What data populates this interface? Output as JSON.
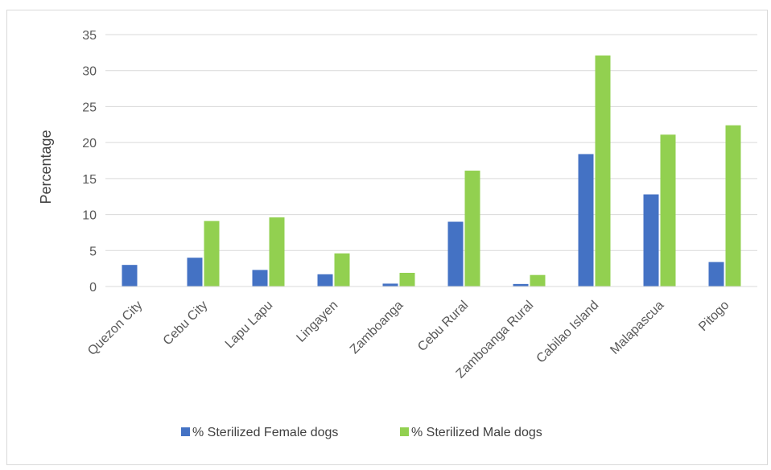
{
  "chart_data": {
    "type": "bar",
    "title": "",
    "xlabel": "",
    "ylabel": "Percentage",
    "ylim": [
      0,
      35
    ],
    "yticks": [
      0,
      5,
      10,
      15,
      20,
      25,
      30,
      35
    ],
    "grid": true,
    "legend_position": "bottom",
    "categories": [
      "Quezon City",
      "Cebu City",
      "Lapu Lapu",
      "Lingayen",
      "Zamboanga",
      "Cebu Rural",
      "Zamboanga Rural",
      "Cabilao Island",
      "Malapascua",
      "Pitogo"
    ],
    "series": [
      {
        "name": "% Sterilized Female dogs",
        "color": "#4472C4",
        "values": [
          3.0,
          4.0,
          2.3,
          1.7,
          0.4,
          9.0,
          0.35,
          18.4,
          12.8,
          3.4
        ]
      },
      {
        "name": "% Sterilized Male dogs",
        "color": "#92D050",
        "values": [
          0,
          9.1,
          9.6,
          4.6,
          1.9,
          16.1,
          1.6,
          32.1,
          21.1,
          22.4
        ]
      }
    ]
  }
}
